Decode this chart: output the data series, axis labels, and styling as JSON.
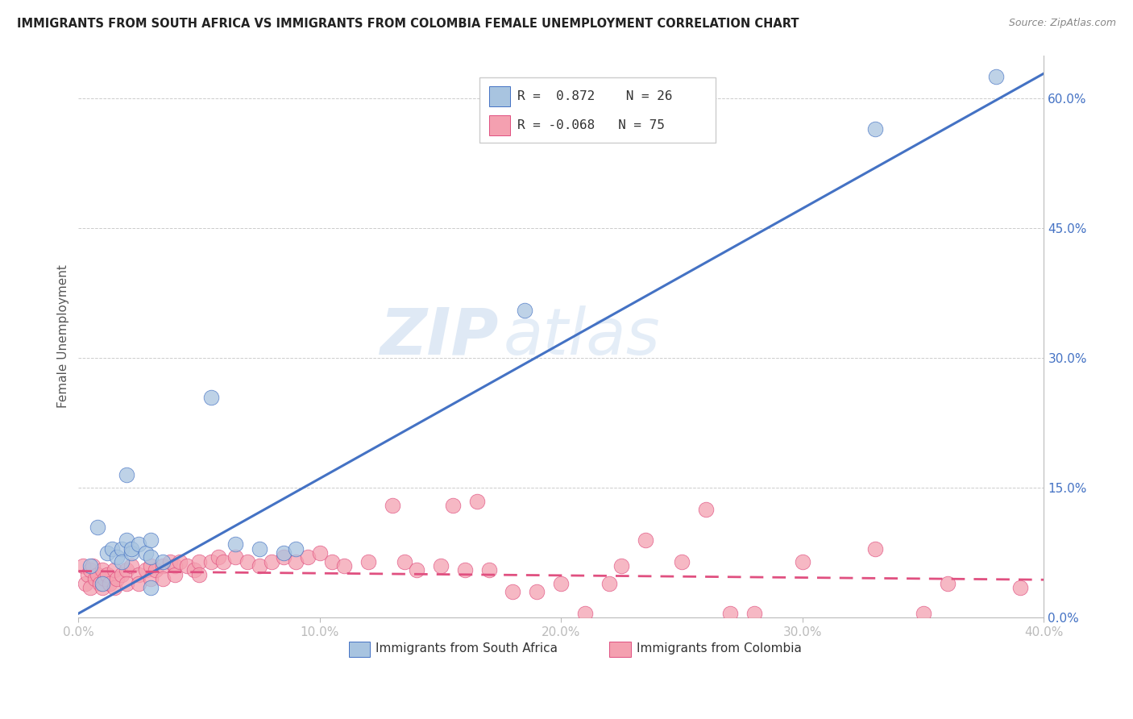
{
  "title": "IMMIGRANTS FROM SOUTH AFRICA VS IMMIGRANTS FROM COLOMBIA FEMALE UNEMPLOYMENT CORRELATION CHART",
  "source": "Source: ZipAtlas.com",
  "ylabel_label": "Female Unemployment",
  "legend1_label": "Immigrants from South Africa",
  "legend2_label": "Immigrants from Colombia",
  "R1": 0.872,
  "N1": 26,
  "R2": -0.068,
  "N2": 75,
  "color_blue": "#a8c4e0",
  "color_pink": "#f4a0b0",
  "color_line_blue": "#4472c4",
  "color_line_pink": "#e05080",
  "watermark_zip": "ZIP",
  "watermark_atlas": "atlas",
  "xlim": [
    0.0,
    0.4
  ],
  "ylim": [
    0.0,
    0.65
  ],
  "x_ticks": [
    0.0,
    0.1,
    0.2,
    0.3,
    0.4
  ],
  "y_ticks": [
    0.0,
    0.15,
    0.3,
    0.45,
    0.6
  ],
  "sa_points": [
    [
      0.005,
      0.06
    ],
    [
      0.008,
      0.105
    ],
    [
      0.01,
      0.04
    ],
    [
      0.012,
      0.075
    ],
    [
      0.014,
      0.08
    ],
    [
      0.016,
      0.07
    ],
    [
      0.018,
      0.08
    ],
    [
      0.018,
      0.065
    ],
    [
      0.02,
      0.09
    ],
    [
      0.022,
      0.075
    ],
    [
      0.022,
      0.08
    ],
    [
      0.025,
      0.085
    ],
    [
      0.028,
      0.075
    ],
    [
      0.03,
      0.07
    ],
    [
      0.03,
      0.09
    ],
    [
      0.03,
      0.035
    ],
    [
      0.035,
      0.065
    ],
    [
      0.02,
      0.165
    ],
    [
      0.055,
      0.255
    ],
    [
      0.065,
      0.085
    ],
    [
      0.075,
      0.08
    ],
    [
      0.085,
      0.075
    ],
    [
      0.09,
      0.08
    ],
    [
      0.185,
      0.355
    ],
    [
      0.33,
      0.565
    ],
    [
      0.38,
      0.625
    ]
  ],
  "col_points": [
    [
      0.002,
      0.06
    ],
    [
      0.003,
      0.04
    ],
    [
      0.004,
      0.05
    ],
    [
      0.005,
      0.055
    ],
    [
      0.005,
      0.035
    ],
    [
      0.006,
      0.06
    ],
    [
      0.007,
      0.045
    ],
    [
      0.008,
      0.05
    ],
    [
      0.009,
      0.04
    ],
    [
      0.01,
      0.055
    ],
    [
      0.01,
      0.035
    ],
    [
      0.011,
      0.045
    ],
    [
      0.012,
      0.05
    ],
    [
      0.013,
      0.04
    ],
    [
      0.015,
      0.055
    ],
    [
      0.015,
      0.035
    ],
    [
      0.016,
      0.045
    ],
    [
      0.018,
      0.05
    ],
    [
      0.02,
      0.055
    ],
    [
      0.02,
      0.04
    ],
    [
      0.022,
      0.06
    ],
    [
      0.025,
      0.05
    ],
    [
      0.025,
      0.04
    ],
    [
      0.028,
      0.055
    ],
    [
      0.03,
      0.06
    ],
    [
      0.03,
      0.045
    ],
    [
      0.032,
      0.055
    ],
    [
      0.035,
      0.06
    ],
    [
      0.035,
      0.045
    ],
    [
      0.038,
      0.065
    ],
    [
      0.04,
      0.06
    ],
    [
      0.04,
      0.05
    ],
    [
      0.042,
      0.065
    ],
    [
      0.045,
      0.06
    ],
    [
      0.048,
      0.055
    ],
    [
      0.05,
      0.065
    ],
    [
      0.05,
      0.05
    ],
    [
      0.055,
      0.065
    ],
    [
      0.058,
      0.07
    ],
    [
      0.06,
      0.065
    ],
    [
      0.065,
      0.07
    ],
    [
      0.07,
      0.065
    ],
    [
      0.075,
      0.06
    ],
    [
      0.08,
      0.065
    ],
    [
      0.085,
      0.07
    ],
    [
      0.09,
      0.065
    ],
    [
      0.095,
      0.07
    ],
    [
      0.1,
      0.075
    ],
    [
      0.105,
      0.065
    ],
    [
      0.11,
      0.06
    ],
    [
      0.12,
      0.065
    ],
    [
      0.13,
      0.13
    ],
    [
      0.135,
      0.065
    ],
    [
      0.14,
      0.055
    ],
    [
      0.15,
      0.06
    ],
    [
      0.155,
      0.13
    ],
    [
      0.16,
      0.055
    ],
    [
      0.165,
      0.135
    ],
    [
      0.17,
      0.055
    ],
    [
      0.18,
      0.03
    ],
    [
      0.19,
      0.03
    ],
    [
      0.2,
      0.04
    ],
    [
      0.21,
      0.005
    ],
    [
      0.22,
      0.04
    ],
    [
      0.225,
      0.06
    ],
    [
      0.235,
      0.09
    ],
    [
      0.25,
      0.065
    ],
    [
      0.26,
      0.125
    ],
    [
      0.27,
      0.005
    ],
    [
      0.28,
      0.005
    ],
    [
      0.3,
      0.065
    ],
    [
      0.33,
      0.08
    ],
    [
      0.35,
      0.005
    ],
    [
      0.36,
      0.04
    ],
    [
      0.39,
      0.035
    ]
  ],
  "sa_line_slope": 1.56,
  "sa_line_intercept": 0.005,
  "col_line_slope": -0.025,
  "col_line_intercept": 0.054
}
